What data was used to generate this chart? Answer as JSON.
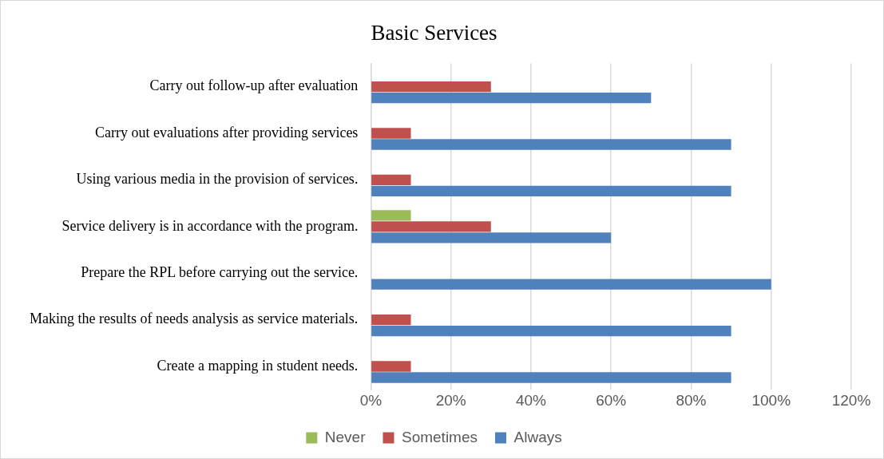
{
  "chart_data": {
    "type": "bar",
    "orientation": "horizontal",
    "title": "Basic Services",
    "categories": [
      "Carry out follow-up after evaluation",
      "Carry out evaluations after providing services",
      "Using various media in the provision of services.",
      "Service delivery is in accordance with the program.",
      "Prepare the RPL before carrying out the service.",
      "Making the results of needs analysis as service materials.",
      "Create a mapping in student needs."
    ],
    "series": [
      {
        "name": "Never",
        "color": "#9bbb59",
        "values": [
          0,
          0,
          0,
          10,
          0,
          0,
          0
        ]
      },
      {
        "name": "Sometimes",
        "color": "#c0504d",
        "values": [
          30,
          10,
          10,
          30,
          0,
          10,
          10
        ]
      },
      {
        "name": "Always",
        "color": "#4f81bd",
        "values": [
          70,
          90,
          90,
          60,
          100,
          90,
          90
        ]
      }
    ],
    "xlim": [
      0,
      120
    ],
    "xticks": [
      {
        "value": 0,
        "label": "0%"
      },
      {
        "value": 20,
        "label": "20%"
      },
      {
        "value": 40,
        "label": "40%"
      },
      {
        "value": 60,
        "label": "60%"
      },
      {
        "value": 80,
        "label": "80%"
      },
      {
        "value": 100,
        "label": "100%"
      },
      {
        "value": 120,
        "label": "120%"
      }
    ],
    "grid": "x",
    "legend": "bottom"
  }
}
